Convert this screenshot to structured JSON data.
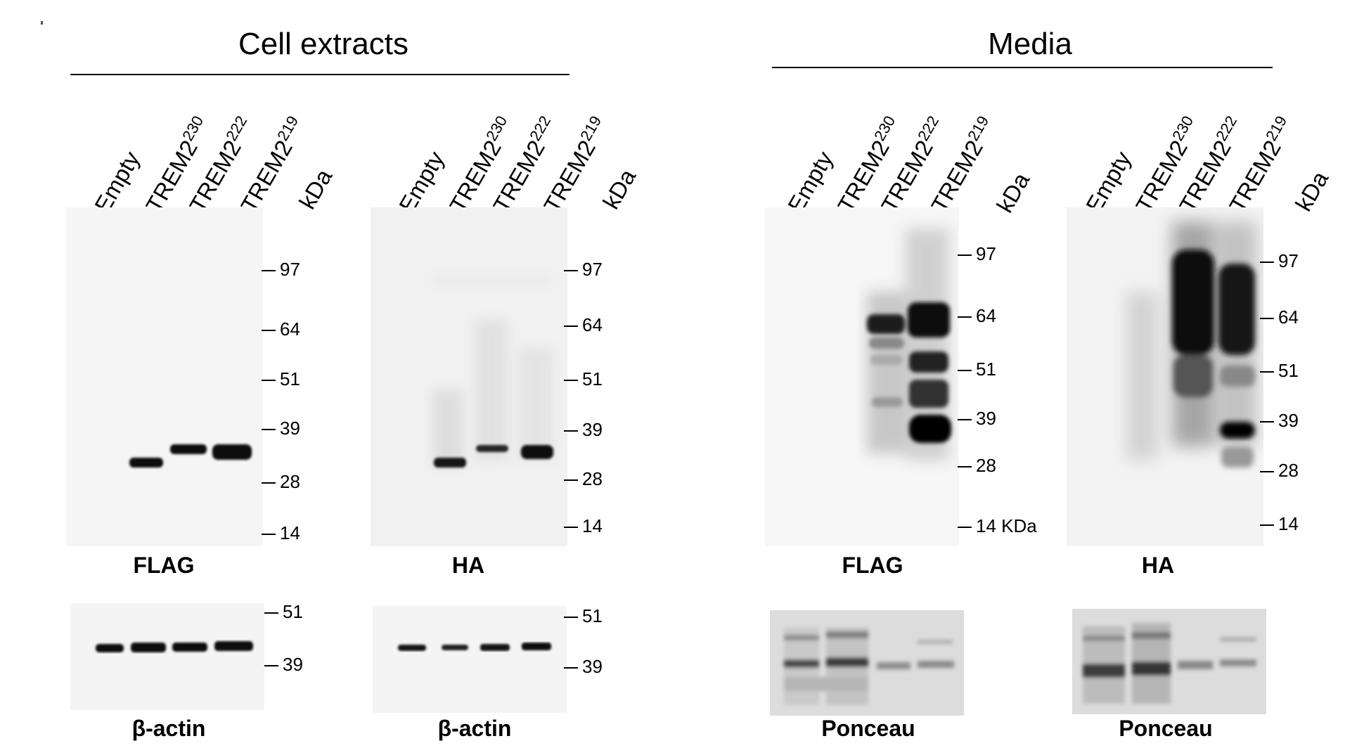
{
  "groups": {
    "cell_extracts": "Cell extracts",
    "media": "Media"
  },
  "lanes": {
    "empty": "Empty",
    "trem_base": "TREM2",
    "sup230": "230",
    "sup222": "222",
    "sup219": "219",
    "kda": "kDa"
  },
  "captions": {
    "flag": "FLAG",
    "ha": "HA",
    "actin": "β-actin",
    "ponceau": "Ponceau"
  },
  "markers": {
    "m97": "97",
    "m64": "64",
    "m51": "51",
    "m39": "39",
    "m28": "28",
    "m14": "14",
    "m14kda": "14 KDa"
  }
}
